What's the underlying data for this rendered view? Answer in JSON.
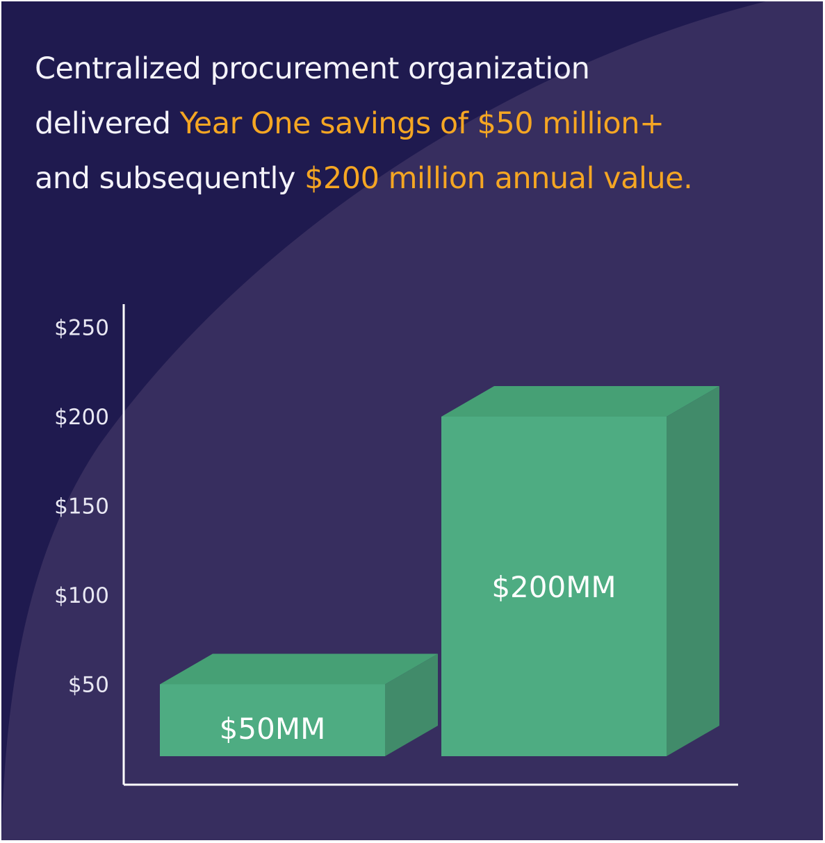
{
  "colors": {
    "background": "#1f1a4f",
    "background_arc": "#372e5f",
    "text": "#f4f3fa",
    "highlight": "#f5a623",
    "bar_front": "#4eac82",
    "bar_top": "#46a075",
    "bar_side": "#418b6a",
    "axis": "#ffffff"
  },
  "headline": {
    "line1": "Centralized procurement organization",
    "line2_plain": "delivered ",
    "line2_highlight": "Year One savings of $50 million+",
    "line3_plain": "and subsequently ",
    "line3_highlight": "$200 million annual value."
  },
  "chart_data": {
    "type": "bar",
    "style": "3d",
    "title": "",
    "xlabel": "",
    "ylabel": "",
    "ylim": [
      0,
      250
    ],
    "y_ticks": [
      {
        "value": 50,
        "label": "$50"
      },
      {
        "value": 100,
        "label": "$100"
      },
      {
        "value": 150,
        "label": "$150"
      },
      {
        "value": 200,
        "label": "$200"
      },
      {
        "value": 250,
        "label": "$250"
      }
    ],
    "categories": [
      "",
      ""
    ],
    "values": [
      50,
      200
    ],
    "data_labels": [
      "$50MM",
      "$200MM"
    ],
    "grid": false,
    "legend": "none"
  }
}
